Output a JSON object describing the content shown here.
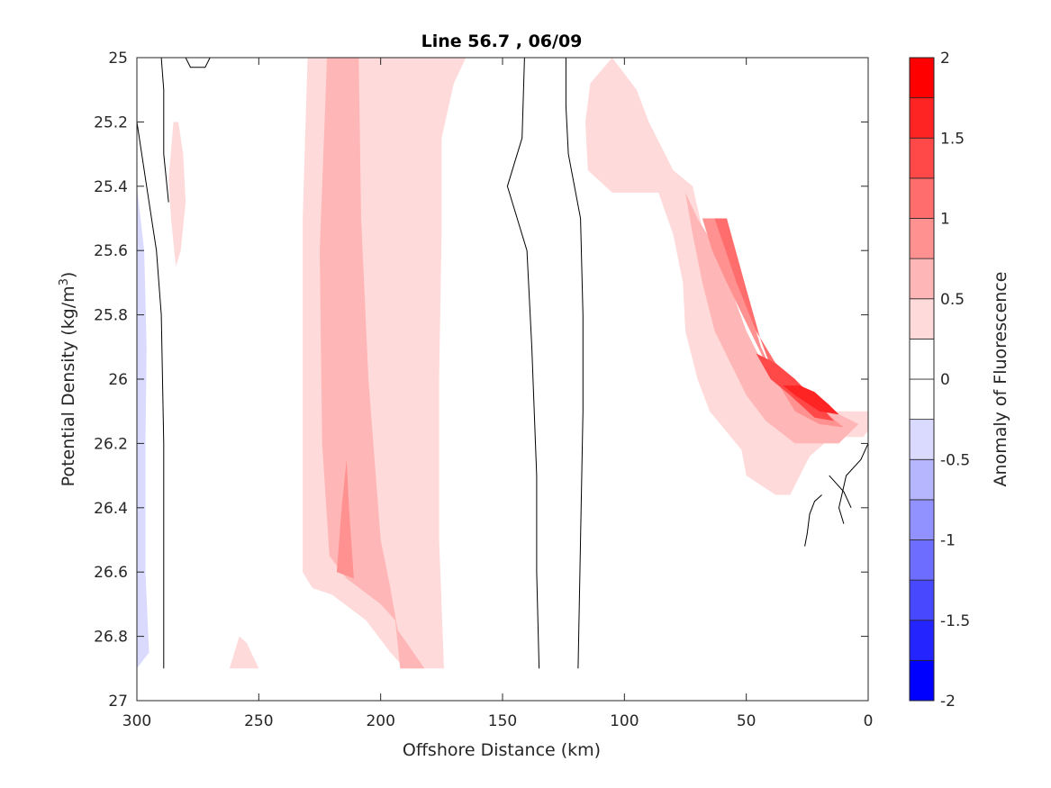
{
  "chart_data": {
    "type": "contour",
    "title": "Line 56.7 , 06/09",
    "xlabel": "Offshore Distance (km)",
    "ylabel": "Potential Density (kg/m",
    "ylabel_sup": "3",
    "ylabel_close": ")",
    "colorbar_label": "Anomaly of Fluorescence",
    "xlim": [
      300,
      0
    ],
    "ylim": [
      25,
      27
    ],
    "x_reversed": true,
    "y_reversed": true,
    "x_ticks": [
      300,
      250,
      200,
      150,
      100,
      50,
      0
    ],
    "y_ticks": [
      25,
      25.2,
      25.4,
      25.6,
      25.8,
      26,
      26.2,
      26.4,
      26.6,
      26.8,
      27
    ],
    "colorbar_ticks": [
      "2",
      "1.5",
      "1",
      "0.5",
      "0",
      "-0.5",
      "-1",
      "-1.5",
      "-2"
    ],
    "colorbar_range": [
      -2,
      2
    ],
    "levels": [
      {
        "min": -2,
        "max": -1.75,
        "color": "#0000ff"
      },
      {
        "min": -1.75,
        "max": -1.5,
        "color": "#2424ff"
      },
      {
        "min": -1.5,
        "max": -1.25,
        "color": "#4848ff"
      },
      {
        "min": -1.25,
        "max": -1,
        "color": "#6d6dff"
      },
      {
        "min": -1,
        "max": -0.75,
        "color": "#9191ff"
      },
      {
        "min": -0.75,
        "max": -0.5,
        "color": "#b6b6ff"
      },
      {
        "min": -0.5,
        "max": -0.25,
        "color": "#dadaff"
      },
      {
        "min": -0.25,
        "max": 0,
        "color": "#ffffff"
      },
      {
        "min": 0,
        "max": 0.25,
        "color": "#ffffff"
      },
      {
        "min": 0.25,
        "max": 0.5,
        "color": "#ffdada"
      },
      {
        "min": 0.5,
        "max": 0.75,
        "color": "#ffb6b6"
      },
      {
        "min": 0.75,
        "max": 1,
        "color": "#ff9191"
      },
      {
        "min": 1,
        "max": 1.25,
        "color": "#ff6d6d"
      },
      {
        "min": 1.25,
        "max": 1.5,
        "color": "#ff4848"
      },
      {
        "min": 1.5,
        "max": 1.75,
        "color": "#ff2424"
      },
      {
        "min": 1.75,
        "max": 2,
        "color": "#ff0000"
      }
    ],
    "filled_regions": [
      {
        "name": "blue-patch-300km",
        "level": -0.375,
        "points": [
          [
            300,
            25.4
          ],
          [
            297,
            25.6
          ],
          [
            296,
            25.9
          ],
          [
            296.5,
            26.2
          ],
          [
            296.5,
            26.6
          ],
          [
            295,
            26.85
          ],
          [
            300,
            26.9
          ]
        ]
      },
      {
        "name": "patch-280km",
        "level": 0.375,
        "points": [
          [
            283,
            25.2
          ],
          [
            281,
            25.3
          ],
          [
            280,
            25.45
          ],
          [
            282,
            25.6
          ],
          [
            284,
            25.65
          ],
          [
            286,
            25.5
          ],
          [
            287,
            25.38
          ],
          [
            285,
            25.2
          ]
        ]
      },
      {
        "name": "patch-260km-bottom",
        "level": 0.375,
        "points": [
          [
            258,
            26.8
          ],
          [
            262,
            26.9
          ],
          [
            250,
            26.9
          ],
          [
            255,
            26.82
          ]
        ]
      },
      {
        "name": "band-200km-outer",
        "level": 0.375,
        "points": [
          [
            230,
            25
          ],
          [
            165,
            25
          ],
          [
            170,
            25.08
          ],
          [
            175,
            25.25
          ],
          [
            175,
            25.55
          ],
          [
            176,
            26
          ],
          [
            176,
            26.5
          ],
          [
            174,
            26.9
          ],
          [
            190,
            26.9
          ],
          [
            196,
            26.85
          ],
          [
            206,
            26.75
          ],
          [
            220,
            26.67
          ],
          [
            228,
            26.65
          ],
          [
            232,
            26.6
          ],
          [
            232,
            25.5
          ]
        ]
      },
      {
        "name": "band-200km-mid",
        "level": 0.625,
        "points": [
          [
            222,
            25
          ],
          [
            209,
            25
          ],
          [
            208,
            25.5
          ],
          [
            205,
            26
          ],
          [
            203,
            26.2
          ],
          [
            200,
            26.5
          ],
          [
            196,
            26.65
          ],
          [
            193,
            26.78
          ],
          [
            182,
            26.9
          ],
          [
            192,
            26.9
          ],
          [
            194,
            26.75
          ],
          [
            200,
            26.7
          ],
          [
            214,
            26.62
          ],
          [
            221,
            26.55
          ],
          [
            224,
            26.2
          ],
          [
            225,
            25.6
          ]
        ]
      },
      {
        "name": "band-200km-inner",
        "level": 0.875,
        "points": [
          [
            214,
            26.25
          ],
          [
            213,
            26.4
          ],
          [
            211,
            26.62
          ],
          [
            218,
            26.6
          ],
          [
            216,
            26.4
          ]
        ]
      },
      {
        "name": "nearshore-l1",
        "level": 0.375,
        "points": [
          [
            105,
            25
          ],
          [
            114,
            25.08
          ],
          [
            116,
            25.2
          ],
          [
            115,
            25.35
          ],
          [
            105,
            25.42
          ],
          [
            100,
            25.42
          ],
          [
            86,
            25.42
          ],
          [
            80,
            25.55
          ],
          [
            76,
            25.7
          ],
          [
            75,
            25.85
          ],
          [
            70,
            26
          ],
          [
            65,
            26.1
          ],
          [
            52,
            26.22
          ],
          [
            50,
            26.3
          ],
          [
            38,
            26.36
          ],
          [
            32,
            26.36
          ],
          [
            28,
            26.3
          ],
          [
            24,
            26.24
          ],
          [
            18,
            26.2
          ],
          [
            10,
            26.18
          ],
          [
            2,
            26.18
          ],
          [
            0,
            26.16
          ],
          [
            0,
            26.1
          ],
          [
            16,
            26.1
          ],
          [
            30,
            26
          ],
          [
            50,
            25.9
          ],
          [
            66,
            25.6
          ],
          [
            72,
            25.4
          ],
          [
            80,
            25.35
          ],
          [
            90,
            25.2
          ],
          [
            95,
            25.1
          ]
        ]
      },
      {
        "name": "nearshore-l2",
        "level": 0.625,
        "points": [
          [
            75,
            25.42
          ],
          [
            72,
            25.55
          ],
          [
            68,
            25.7
          ],
          [
            63,
            25.85
          ],
          [
            50,
            26.05
          ],
          [
            42,
            26.13
          ],
          [
            30,
            26.2
          ],
          [
            12,
            26.2
          ],
          [
            4,
            26.14
          ],
          [
            40,
            26
          ],
          [
            50,
            25.85
          ],
          [
            62,
            25.6
          ],
          [
            70,
            25.5
          ]
        ]
      },
      {
        "name": "nearshore-l3",
        "level": 0.875,
        "points": [
          [
            68,
            25.5
          ],
          [
            60,
            25.5
          ],
          [
            52,
            25.7
          ],
          [
            44,
            25.9
          ],
          [
            38,
            26
          ],
          [
            30,
            26.1
          ],
          [
            20,
            26.14
          ],
          [
            10,
            26.15
          ],
          [
            20,
            26.09
          ],
          [
            30,
            26.05
          ],
          [
            42,
            25.95
          ],
          [
            58,
            25.7
          ],
          [
            64,
            25.6
          ]
        ]
      },
      {
        "name": "nearshore-l4",
        "level": 1.125,
        "points": [
          [
            63,
            25.5
          ],
          [
            58,
            25.5
          ],
          [
            50,
            25.72
          ],
          [
            44,
            25.88
          ],
          [
            38,
            26
          ],
          [
            30,
            26.06
          ],
          [
            20,
            26.1
          ],
          [
            30,
            26.04
          ],
          [
            38,
            25.95
          ],
          [
            46,
            25.85
          ],
          [
            54,
            25.7
          ]
        ]
      },
      {
        "name": "nearshore-l5",
        "level": 1.375,
        "points": [
          [
            46,
            25.92
          ],
          [
            40,
            26
          ],
          [
            32,
            26.05
          ],
          [
            22,
            26.12
          ],
          [
            14,
            26.13
          ],
          [
            20,
            26.08
          ],
          [
            30,
            26
          ],
          [
            38,
            25.95
          ]
        ]
      },
      {
        "name": "nearshore-l6",
        "level": 1.625,
        "points": [
          [
            35,
            26.02
          ],
          [
            30,
            26.05
          ],
          [
            20,
            26.1
          ],
          [
            12,
            26.11
          ],
          [
            16,
            26.08
          ],
          [
            22,
            26.04
          ],
          [
            28,
            26.02
          ]
        ]
      }
    ],
    "contour_lines": [
      {
        "name": "contour-a",
        "points": [
          [
            300,
            25.2
          ],
          [
            296,
            25.4
          ],
          [
            292,
            25.6
          ],
          [
            290,
            25.8
          ],
          [
            289,
            26.2
          ],
          [
            289,
            26.5
          ],
          [
            289,
            26.9
          ]
        ]
      },
      {
        "name": "contour-b",
        "points": [
          [
            290,
            25
          ],
          [
            289,
            25.1
          ],
          [
            289,
            25.3
          ],
          [
            287,
            25.45
          ]
        ]
      },
      {
        "name": "contour-c",
        "points": [
          [
            280,
            25
          ],
          [
            278,
            25.03
          ],
          [
            272,
            25.03
          ],
          [
            270,
            25
          ]
        ]
      },
      {
        "name": "contour-d",
        "points": [
          [
            141,
            25
          ],
          [
            142,
            25.25
          ],
          [
            148,
            25.4
          ],
          [
            140,
            25.6
          ],
          [
            138,
            25.9
          ],
          [
            136,
            26.3
          ],
          [
            136,
            26.6
          ],
          [
            135,
            26.9
          ]
        ]
      },
      {
        "name": "contour-e",
        "points": [
          [
            124,
            25
          ],
          [
            124,
            25.15
          ],
          [
            123,
            25.3
          ],
          [
            118,
            25.5
          ],
          [
            117,
            25.8
          ],
          [
            117,
            26.1
          ],
          [
            118,
            26.5
          ],
          [
            119,
            26.9
          ]
        ]
      },
      {
        "name": "contour-f",
        "points": [
          [
            0,
            26.2
          ],
          [
            3,
            26.25
          ],
          [
            9,
            26.3
          ],
          [
            12,
            26.4
          ],
          [
            10,
            26.45
          ]
        ]
      },
      {
        "name": "contour-g",
        "points": [
          [
            16,
            26.3
          ],
          [
            10,
            26.35
          ],
          [
            7,
            26.4
          ]
        ]
      },
      {
        "name": "contour-h",
        "points": [
          [
            26,
            26.52
          ],
          [
            25,
            26.48
          ],
          [
            24,
            26.42
          ],
          [
            22,
            26.38
          ],
          [
            19,
            26.36
          ]
        ]
      }
    ]
  }
}
